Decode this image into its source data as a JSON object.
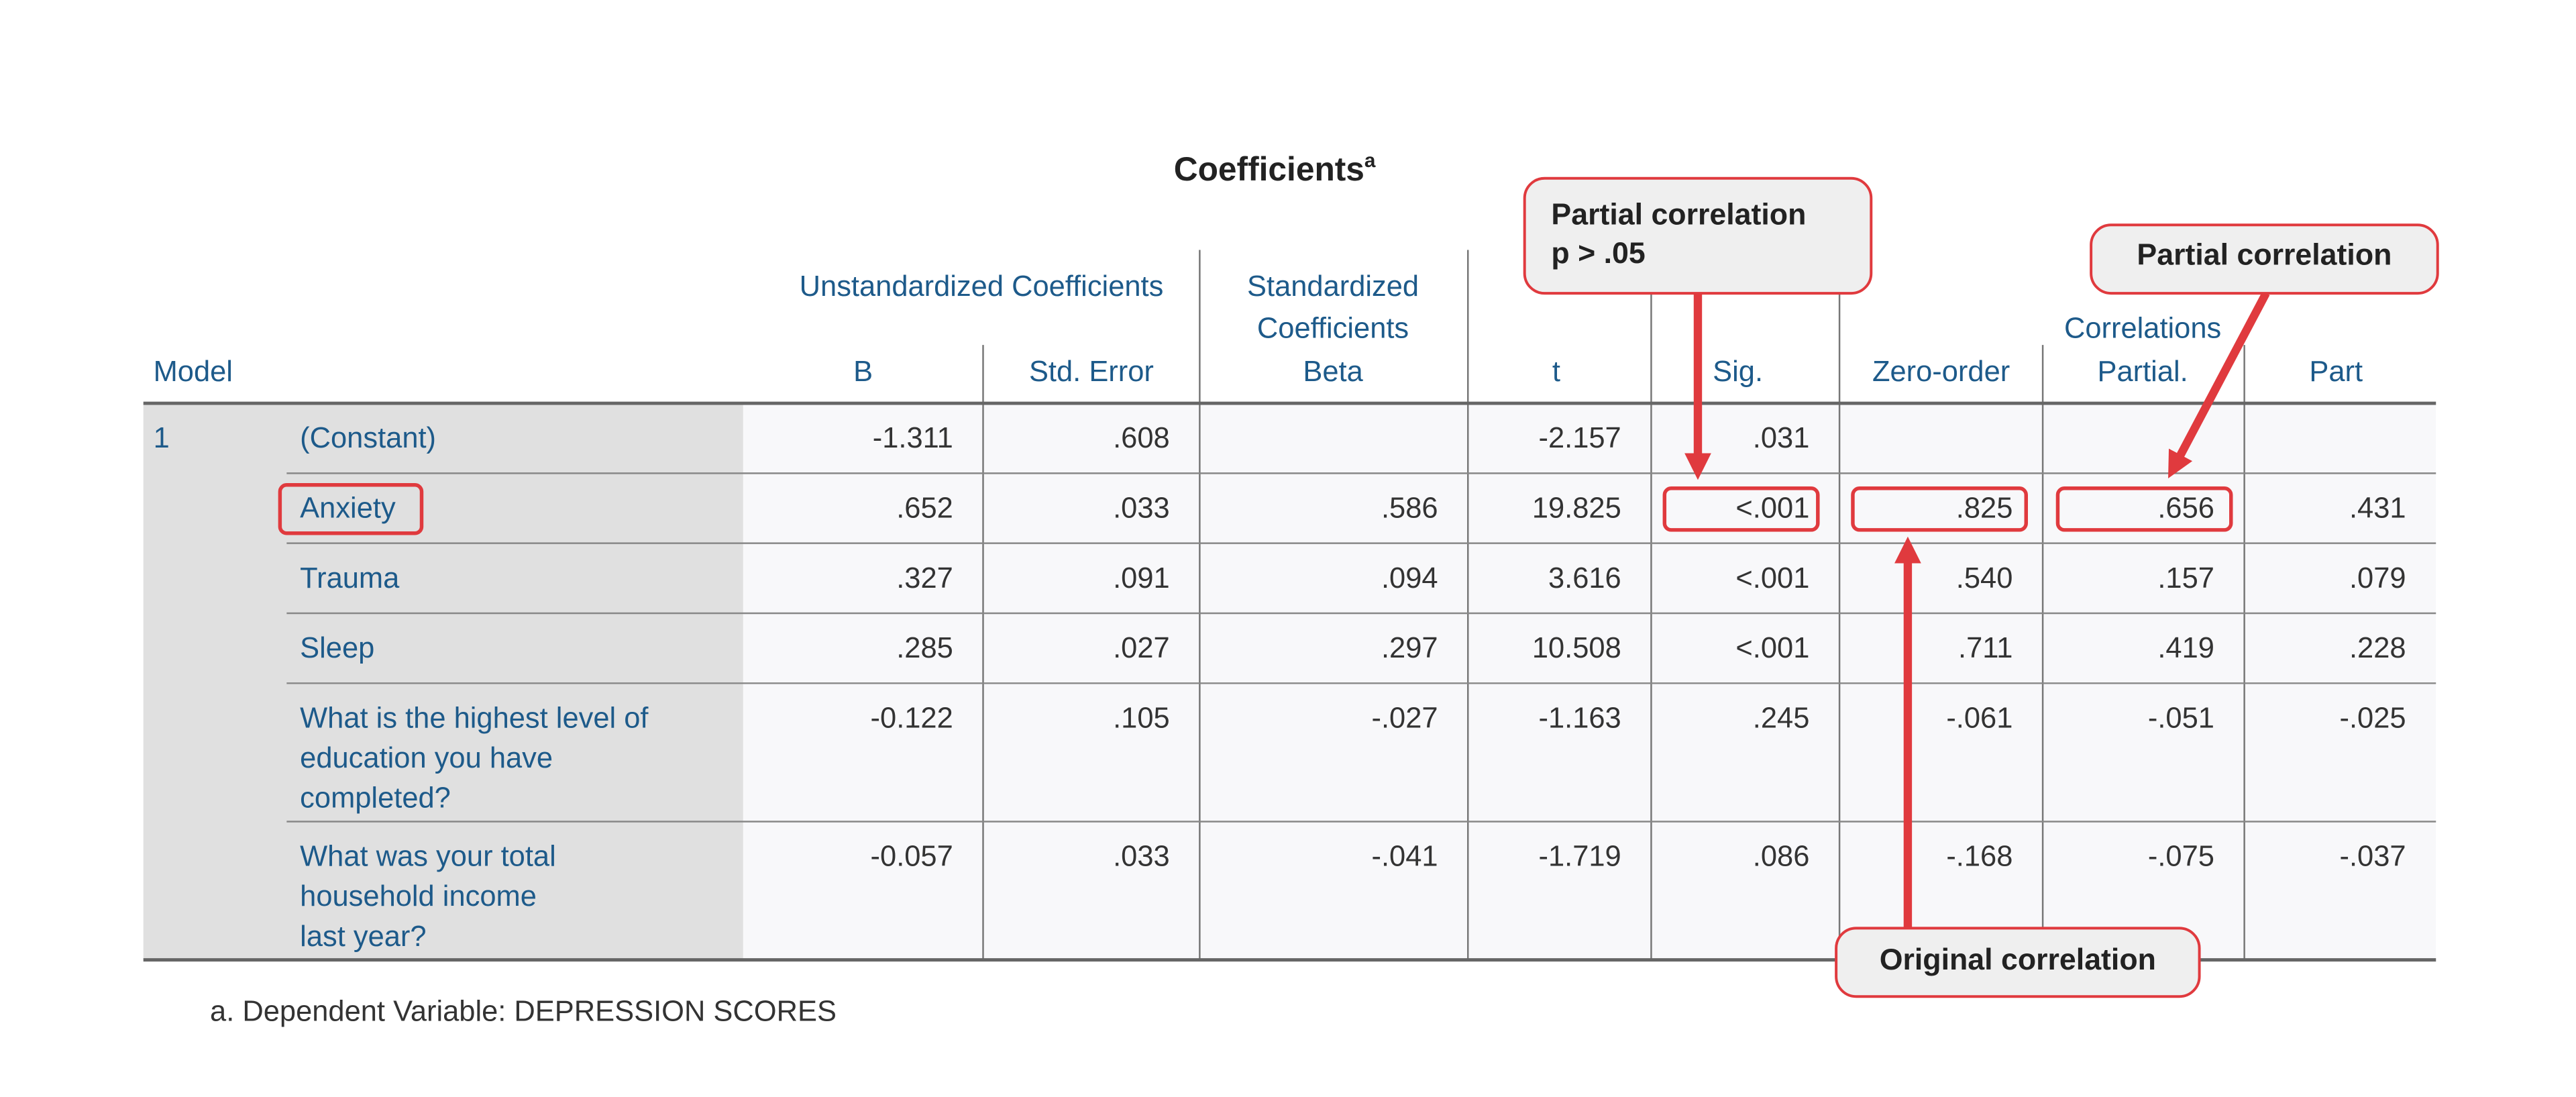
{
  "title": "Coefficients",
  "title_note": "a",
  "table": {
    "headers": {
      "model": "Model",
      "unstandardized": "Unstandardized Coefficients",
      "standardized": [
        "Standardized",
        "Coefficients"
      ],
      "correlations": "Correlations",
      "columns": [
        "B",
        "Std. Error",
        "Beta",
        "t",
        "Sig.",
        "Zero-order",
        "Partial.",
        "Part"
      ]
    },
    "model": "1",
    "rows": [
      {
        "label": [
          "(Constant)"
        ],
        "cells": [
          "-1.311",
          ".608",
          null,
          "-2.157",
          ".031",
          null,
          null,
          null
        ]
      },
      {
        "label": [
          "Anxiety"
        ],
        "cells": [
          ".652",
          ".033",
          ".586",
          "19.825",
          "<.001",
          ".825",
          ".656",
          ".431"
        ]
      },
      {
        "label": [
          "Trauma"
        ],
        "cells": [
          ".327",
          ".091",
          ".094",
          "3.616",
          "<.001",
          ".540",
          ".157",
          ".079"
        ]
      },
      {
        "label": [
          "Sleep"
        ],
        "cells": [
          ".285",
          ".027",
          ".297",
          "10.508",
          "<.001",
          ".711",
          ".419",
          ".228"
        ]
      },
      {
        "label": [
          "What is the highest level of",
          "education you have",
          "completed?"
        ],
        "cells": [
          "-0.122",
          ".105",
          "-.027",
          "-1.163",
          ".245",
          "-.061",
          "-.051",
          "-.025"
        ]
      },
      {
        "label": [
          "What was your total",
          "household income",
          "last year?"
        ],
        "cells": [
          "-0.057",
          ".033",
          "-.041",
          "-1.719",
          ".086",
          "-.168",
          "-.075",
          "-.037"
        ]
      }
    ]
  },
  "footnote": "a. Dependent Variable: DEPRESSION SCORES",
  "annotations": [
    {
      "lines": [
        "Partial correlation",
        "p > .05"
      ]
    },
    {
      "lines": [
        "Partial correlation"
      ]
    },
    {
      "lines": [
        "Original correlation"
      ]
    }
  ]
}
